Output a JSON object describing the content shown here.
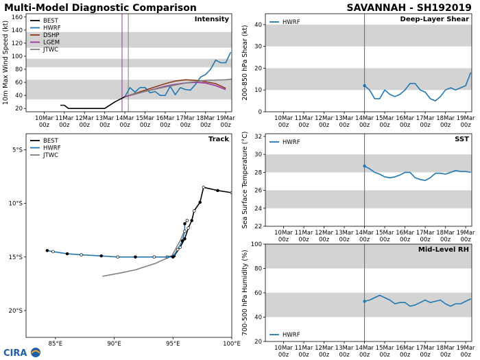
{
  "header": {
    "left_title": "Multi-Model Diagnostic Comparison",
    "right_title": "SAVANNAH - SH192019"
  },
  "logo": {
    "text": "CIRA",
    "colors": [
      "#1f5fa8",
      "#f5a623"
    ]
  },
  "colors": {
    "BEST": "#000000",
    "HWRF": "#1f77b4",
    "DSHP": "#8c3b1a",
    "LGEM": "#9b30a0",
    "JTWC": "#7f7f7f",
    "band": "#d3d3d3"
  },
  "time_ticks": [
    "10Mar\n00z",
    "11Mar\n00z",
    "12Mar\n00z",
    "13Mar\n00z",
    "14Mar\n00z",
    "15Mar\n00z",
    "16Mar\n00z",
    "17Mar\n00z",
    "18Mar\n00z",
    "19Mar\n00z"
  ],
  "chart_data": [
    {
      "id": "intensity",
      "type": "line",
      "title": "Intensity",
      "ylabel": "10m Max Wind Speed (kt)",
      "x_unit": "days since 10Mar 00z",
      "xlim": [
        -0.9,
        9.3
      ],
      "ylim": [
        15,
        165
      ],
      "yticks": [
        20,
        40,
        60,
        80,
        100,
        120,
        140,
        160
      ],
      "bands": [
        [
          34,
          64
        ],
        [
          83,
          96
        ],
        [
          113,
          137
        ]
      ],
      "vlines": [
        {
          "x": 3.86,
          "color": "#9b30a0"
        },
        {
          "x": 4.17,
          "color": "#7f7f7f"
        }
      ],
      "legend": [
        "BEST",
        "HWRF",
        "DSHP",
        "LGEM",
        "JTWC"
      ],
      "series": [
        {
          "name": "BEST",
          "x": [
            0.8,
            1.0,
            1.2,
            1.5,
            2.0,
            2.5,
            3.0,
            3.5,
            4.0
          ],
          "y": [
            25,
            25,
            20,
            20,
            20,
            20,
            20,
            30,
            38
          ]
        },
        {
          "name": "HWRF",
          "x": [
            4.0,
            4.25,
            4.5,
            4.75,
            5.0,
            5.25,
            5.5,
            5.75,
            6.0,
            6.25,
            6.5,
            6.75,
            7.0,
            7.25,
            7.5,
            7.75,
            8.0,
            8.25,
            8.5,
            8.75,
            9.0,
            9.25
          ],
          "y": [
            38,
            52,
            45,
            52,
            52,
            44,
            46,
            40,
            40,
            54,
            41,
            52,
            49,
            48,
            57,
            68,
            72,
            80,
            94,
            90,
            90,
            106
          ]
        },
        {
          "name": "DSHP",
          "x": [
            4.0,
            4.5,
            5.0,
            5.5,
            6.0,
            6.5,
            7.0,
            7.5,
            8.0,
            8.5,
            9.0
          ],
          "y": [
            38,
            43,
            48,
            53,
            58,
            62,
            64,
            63,
            61,
            58,
            51
          ]
        },
        {
          "name": "LGEM",
          "x": [
            4.0,
            4.5,
            5.0,
            5.5,
            6.0,
            6.5,
            7.0,
            7.5,
            8.0,
            8.5,
            9.0
          ],
          "y": [
            38,
            42,
            46,
            50,
            54,
            57,
            59,
            60,
            59,
            55,
            49
          ]
        },
        {
          "name": "JTWC",
          "x": [
            4.17,
            5.0,
            6.0,
            7.0,
            8.0,
            9.0,
            9.3
          ],
          "y": [
            40,
            46,
            53,
            59,
            63,
            64,
            65
          ]
        }
      ]
    },
    {
      "id": "track",
      "type": "scatter",
      "title": "Track",
      "xlim": [
        82.5,
        100
      ],
      "ylim": [
        -22.5,
        -3.5
      ],
      "xticks": [
        85,
        90,
        95,
        100
      ],
      "xtick_labels": [
        "85°E",
        "90°E",
        "95°E",
        "100°E"
      ],
      "yticks": [
        -5,
        -10,
        -15,
        -20
      ],
      "ytick_labels": [
        "5°S",
        "10°S",
        "15°S",
        "20°S"
      ],
      "legend": [
        "BEST",
        "HWRF",
        "JTWC"
      ],
      "series": [
        {
          "name": "BEST",
          "lon": [
            100.0,
            98.8,
            97.6,
            97.3,
            96.8,
            96.6,
            96.3,
            96.0,
            95.6,
            95.1,
            94.5
          ],
          "lat": [
            -9.0,
            -8.8,
            -8.5,
            -9.9,
            -10.7,
            -11.6,
            -12.3,
            -13.3,
            -14.1,
            -14.9,
            -15.0
          ]
        },
        {
          "name": "HWRF",
          "lon": [
            96.2,
            96.0,
            96.0,
            95.8,
            95.4,
            95.0,
            93.4,
            91.8,
            90.3,
            88.9,
            87.2,
            86.0,
            84.8,
            84.3
          ],
          "lat": [
            -11.6,
            -11.9,
            -12.6,
            -13.5,
            -14.3,
            -15.0,
            -15.0,
            -15.0,
            -15.0,
            -14.9,
            -14.8,
            -14.7,
            -14.5,
            -14.4
          ]
        },
        {
          "name": "JTWC",
          "lon": [
            96.0,
            95.6,
            94.9,
            93.5,
            91.8,
            90.5,
            89.0
          ],
          "lat": [
            -12.5,
            -13.5,
            -14.9,
            -15.6,
            -16.2,
            -16.5,
            -16.8
          ]
        }
      ]
    },
    {
      "id": "shear",
      "type": "line",
      "title": "Deep-Layer Shear",
      "ylabel": "200-850 hPa Shear (kt)",
      "x_unit": "days since 10Mar 00z",
      "xlim": [
        -0.9,
        9.3
      ],
      "ylim": [
        0,
        45
      ],
      "yticks": [
        0,
        10,
        20,
        30,
        40
      ],
      "bands": [
        [
          10,
          20
        ],
        [
          30,
          40
        ]
      ],
      "vlines": [
        {
          "x": 4.0,
          "color": "#1f77b4"
        }
      ],
      "legend": [
        "HWRF"
      ],
      "series": [
        {
          "name": "HWRF",
          "x": [
            4.0,
            4.25,
            4.5,
            4.75,
            5.0,
            5.25,
            5.5,
            5.75,
            6.0,
            6.25,
            6.5,
            6.75,
            7.0,
            7.25,
            7.5,
            7.75,
            8.0,
            8.25,
            8.5,
            8.75,
            9.0,
            9.25
          ],
          "y": [
            12,
            10,
            6,
            6,
            10,
            8,
            7,
            8,
            10,
            13,
            13,
            10,
            9,
            6,
            5,
            7,
            10,
            11,
            10,
            11,
            12,
            18
          ]
        }
      ]
    },
    {
      "id": "sst",
      "type": "line",
      "title": "SST",
      "ylabel": "Sea Surface Temperature (°C)",
      "x_unit": "days since 10Mar 00z",
      "xlim": [
        -0.9,
        9.3
      ],
      "ylim": [
        22,
        32.3
      ],
      "yticks": [
        22,
        24,
        26,
        28,
        30,
        32
      ],
      "bands": [
        [
          24,
          26
        ],
        [
          28,
          30
        ]
      ],
      "vlines": [
        {
          "x": 4.0,
          "color": "#1f77b4"
        }
      ],
      "legend": [
        "HWRF"
      ],
      "series": [
        {
          "name": "HWRF",
          "x": [
            4.0,
            4.25,
            4.5,
            4.75,
            5.0,
            5.25,
            5.5,
            5.75,
            6.0,
            6.25,
            6.5,
            6.75,
            7.0,
            7.25,
            7.5,
            7.75,
            8.0,
            8.25,
            8.5,
            8.75,
            9.0,
            9.25
          ],
          "y": [
            28.7,
            28.4,
            28.0,
            27.8,
            27.5,
            27.4,
            27.5,
            27.7,
            28.0,
            28.0,
            27.4,
            27.2,
            27.1,
            27.4,
            27.9,
            27.9,
            27.8,
            28.0,
            28.2,
            28.1,
            28.1,
            28.0
          ]
        }
      ]
    },
    {
      "id": "rh",
      "type": "line",
      "title": "Mid-Level RH",
      "ylabel": "700-500 hPa Humidity (%)",
      "x_unit": "days since 10Mar 00z",
      "xlim": [
        -0.9,
        9.3
      ],
      "ylim": [
        20,
        100
      ],
      "yticks": [
        20,
        40,
        60,
        80,
        100
      ],
      "bands": [
        [
          40,
          60
        ],
        [
          80,
          100
        ]
      ],
      "vlines": [
        {
          "x": 4.0,
          "color": "#1f77b4"
        }
      ],
      "legend": [
        "HWRF"
      ],
      "series": [
        {
          "name": "HWRF",
          "x": [
            4.0,
            4.25,
            4.5,
            4.75,
            5.0,
            5.25,
            5.5,
            5.75,
            6.0,
            6.25,
            6.5,
            6.75,
            7.0,
            7.25,
            7.5,
            7.75,
            8.0,
            8.25,
            8.5,
            8.75,
            9.0,
            9.25
          ],
          "y": [
            53,
            54,
            56,
            58,
            56,
            54,
            51,
            52,
            52,
            49,
            50,
            52,
            54,
            52,
            53,
            54,
            51,
            49,
            51,
            51,
            53,
            55
          ]
        }
      ]
    }
  ]
}
